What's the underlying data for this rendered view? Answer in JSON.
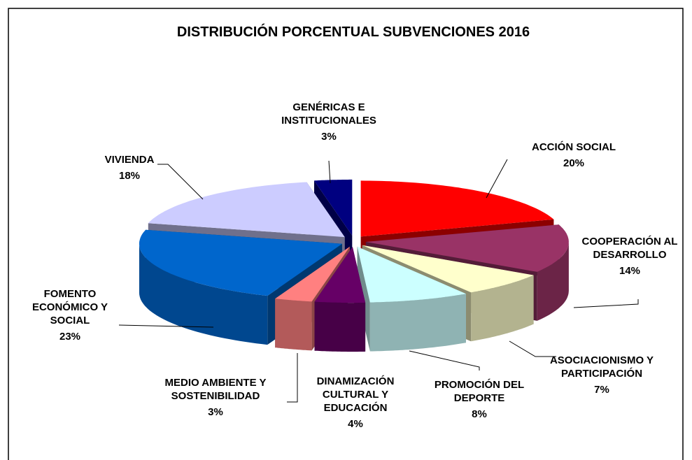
{
  "chart_data": {
    "type": "pie3d",
    "title": "DISTRIBUCIÓN PORCENTUAL SUBVENCIONES 2016",
    "categories": [
      "ACCIÓN SOCIAL",
      "COOPERACIÓN AL DESARROLLO",
      "ASOCIACIONISMO Y PARTICIPACIÓN",
      "PROMOCIÓN DEL DEPORTE",
      "DINAMIZACIÓN CULTURAL Y EDUCACIÓN",
      "MEDIO AMBIENTE Y SOSTENIBILIDAD",
      "FOMENTO ECONÓMICO Y SOCIAL",
      "VIVIENDA",
      "GENÉRICAS E INSTITUCIONALES"
    ],
    "values": [
      20,
      14,
      7,
      8,
      4,
      3,
      23,
      18,
      3
    ],
    "value_labels": [
      "20%",
      "14%",
      "7%",
      "8%",
      "4%",
      "3%",
      "23%",
      "18%",
      "3%"
    ],
    "colors": [
      "#ff0000",
      "#993366",
      "#ffffcc",
      "#ccffff",
      "#660066",
      "#ff8080",
      "#0066cc",
      "#ccccff",
      "#000080"
    ]
  }
}
